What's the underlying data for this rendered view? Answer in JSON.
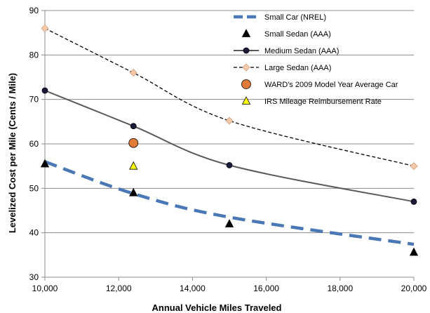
{
  "chart_data": {
    "type": "line",
    "title": "",
    "xlabel": "Annual Vehicle Miles Traveled",
    "ylabel": "Levelized Cost per Mile (Cents / Mile)",
    "xlim": [
      10000,
      20000
    ],
    "ylim": [
      30,
      90
    ],
    "x_ticks": [
      10000,
      12000,
      14000,
      16000,
      18000,
      20000
    ],
    "x_tick_labels": [
      "10,000",
      "12,000",
      "14,000",
      "16,000",
      "18,000",
      "20,000"
    ],
    "y_ticks": [
      30,
      40,
      50,
      60,
      70,
      80,
      90
    ],
    "y_tick_labels": [
      "30",
      "40",
      "50",
      "60",
      "70",
      "80",
      "90"
    ],
    "grid": "horizontal",
    "legend_position": "top-right",
    "series": [
      {
        "name": "Small Car (NREL)",
        "style": "dashed-thick",
        "color": "#4a78b5",
        "x": [
          10000,
          12400,
          15000,
          20000
        ],
        "y": [
          56,
          48.8,
          43.5,
          37.4
        ]
      },
      {
        "name": "Small Sedan (AAA)",
        "style": "marker-triangle",
        "color": "#000000",
        "x": [
          10000,
          12400,
          15000,
          20000
        ],
        "y": [
          55.5,
          49,
          42,
          35.6
        ]
      },
      {
        "name": "Medium Sedan (AAA)",
        "style": "solid-circle",
        "color": "#595959",
        "marker_color": "#1a1a3a",
        "x": [
          10000,
          12400,
          15000,
          20000
        ],
        "y": [
          72,
          64,
          55.2,
          47
        ]
      },
      {
        "name": "Large Sedan (AAA)",
        "style": "dashed-diamond",
        "color": "#000000",
        "marker_color": "#f9c9a8",
        "x": [
          10000,
          12400,
          15000,
          20000
        ],
        "y": [
          86,
          76,
          65.2,
          55
        ]
      },
      {
        "name": "WARD's 2009 Model Year Average Car",
        "style": "marker-circle",
        "color": "#e07b39",
        "x": [
          12400
        ],
        "y": [
          60.2
        ]
      },
      {
        "name": "IRS Mileage Reimbursement Rate",
        "style": "marker-triangle",
        "color": "#ffff00",
        "x": [
          12400
        ],
        "y": [
          55
        ]
      }
    ]
  }
}
